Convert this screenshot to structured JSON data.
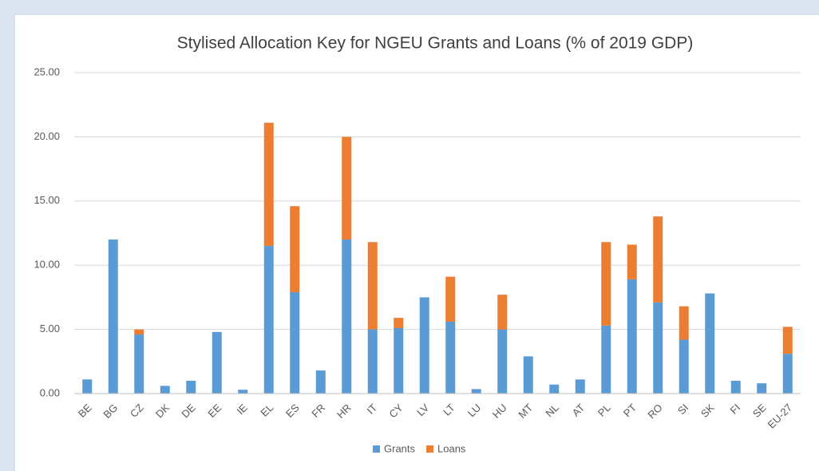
{
  "chart_data": {
    "type": "stacked_bar",
    "title": "Stylised Allocation Key for NGEU Grants and Loans (% of 2019 GDP)",
    "categories": [
      "BE",
      "BG",
      "CZ",
      "DK",
      "DE",
      "EE",
      "IE",
      "EL",
      "ES",
      "FR",
      "HR",
      "IT",
      "CY",
      "LV",
      "LT",
      "LU",
      "HU",
      "MT",
      "NL",
      "AT",
      "PL",
      "PT",
      "RO",
      "SI",
      "SK",
      "FI",
      "SE",
      "EU-27"
    ],
    "series": [
      {
        "name": "Grants",
        "color": "#5b9bd5",
        "values": [
          1.1,
          12.0,
          4.6,
          0.6,
          1.0,
          4.8,
          0.3,
          11.5,
          7.9,
          1.8,
          12.0,
          5.0,
          5.1,
          7.5,
          5.6,
          0.35,
          5.0,
          2.9,
          0.7,
          1.1,
          5.3,
          8.9,
          7.1,
          4.2,
          7.8,
          1.0,
          0.8,
          3.1
        ]
      },
      {
        "name": "Loans",
        "color": "#ed7d31",
        "values": [
          0,
          0,
          0.4,
          0,
          0,
          0,
          0,
          9.6,
          6.7,
          0,
          8.0,
          6.8,
          0.8,
          0,
          3.5,
          0,
          2.7,
          0,
          0,
          0,
          6.5,
          2.7,
          6.7,
          2.6,
          0,
          0,
          0,
          2.1
        ]
      }
    ],
    "ylim": [
      0,
      25
    ],
    "yticks": [
      {
        "value": 0,
        "label": "0.00"
      },
      {
        "value": 5,
        "label": "5.00"
      },
      {
        "value": 10,
        "label": "10.00"
      },
      {
        "value": 15,
        "label": "15.00"
      },
      {
        "value": 20,
        "label": "20.00"
      },
      {
        "value": 25,
        "label": "25.00"
      }
    ],
    "grid": true,
    "legend": "bottom"
  }
}
